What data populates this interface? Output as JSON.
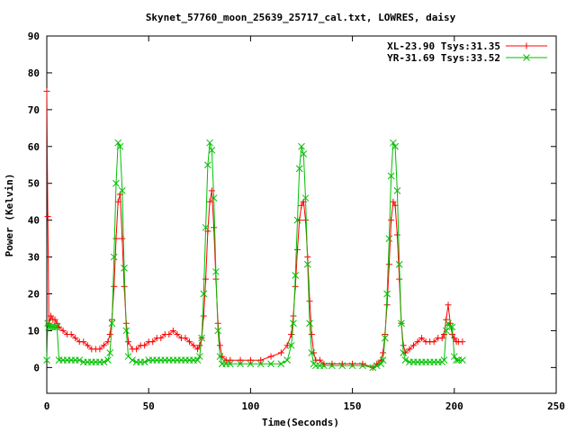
{
  "chart_data": {
    "type": "scatter",
    "title": "Skynet_57760_moon_25639_25717_cal.txt, LOWRES, daisy",
    "xlabel": "Time(Seconds)",
    "ylabel": "Power (Kelvin)",
    "xlim": [
      0,
      250
    ],
    "ylim": [
      -7,
      90
    ],
    "xticks": [
      0,
      50,
      100,
      150,
      200,
      250
    ],
    "yticks": [
      0,
      10,
      20,
      30,
      40,
      50,
      60,
      70,
      80,
      90
    ],
    "x_tick_labels": [
      "0",
      "50",
      "100",
      "150",
      "200",
      "250"
    ],
    "y_tick_labels": [
      "0",
      "10",
      "20",
      "30",
      "40",
      "50",
      "60",
      "70",
      "80",
      "90"
    ],
    "grid": false,
    "legend_position": "top-right",
    "series": [
      {
        "name": "XL-23.90 Tsys:31.35",
        "color": "#ff0000",
        "marker": "plus",
        "line": true,
        "x": [
          0,
          0.5,
          1,
          2,
          3,
          4,
          5,
          6,
          8,
          10,
          12,
          14,
          16,
          18,
          20,
          22,
          24,
          26,
          28,
          30,
          31,
          32,
          33,
          34,
          35,
          36,
          37,
          38,
          39,
          40,
          42,
          44,
          46,
          48,
          50,
          52,
          54,
          56,
          58,
          60,
          62,
          64,
          66,
          68,
          70,
          72,
          74,
          75,
          76,
          77,
          78,
          79,
          80,
          81,
          82,
          83,
          84,
          85,
          86,
          88,
          90,
          95,
          100,
          105,
          110,
          115,
          118,
          120,
          121,
          122,
          123,
          124,
          125,
          126,
          127,
          128,
          129,
          130,
          131,
          132,
          134,
          136,
          140,
          145,
          150,
          155,
          160,
          162,
          164,
          165,
          166,
          167,
          168,
          169,
          170,
          171,
          172,
          173,
          174,
          175,
          176,
          178,
          180,
          182,
          184,
          186,
          188,
          190,
          192,
          194,
          195,
          196,
          197,
          198,
          199,
          200,
          201,
          202,
          204
        ],
        "y": [
          75,
          41,
          12,
          14,
          13,
          13,
          12,
          11,
          10,
          9,
          9,
          8,
          7,
          7,
          6,
          5,
          5,
          5,
          6,
          7,
          9,
          13,
          22,
          35,
          45,
          47,
          35,
          22,
          12,
          7,
          5,
          5,
          6,
          6,
          7,
          7,
          8,
          8,
          9,
          9,
          10,
          9,
          8,
          8,
          7,
          6,
          5,
          6,
          8,
          14,
          24,
          37,
          45,
          48,
          38,
          24,
          12,
          6,
          3,
          2,
          2,
          2,
          2,
          2,
          3,
          4,
          6,
          9,
          14,
          22,
          32,
          40,
          44,
          45,
          40,
          30,
          18,
          9,
          4,
          2,
          2,
          1,
          1,
          1,
          1,
          1,
          0,
          1,
          2,
          4,
          9,
          17,
          28,
          40,
          45,
          44,
          36,
          24,
          12,
          6,
          4,
          5,
          6,
          7,
          8,
          7,
          7,
          7,
          8,
          8,
          9,
          13,
          17,
          12,
          9,
          8,
          7,
          7,
          7
        ]
      },
      {
        "name": "YR-31.69 Tsys:33.52",
        "color": "#00c000",
        "marker": "cross",
        "line": true,
        "x": [
          0,
          0.5,
          1,
          2,
          3,
          4,
          5,
          6,
          8,
          10,
          12,
          14,
          16,
          18,
          20,
          22,
          24,
          26,
          28,
          30,
          31,
          32,
          33,
          34,
          35,
          36,
          37,
          38,
          39,
          40,
          42,
          44,
          46,
          48,
          50,
          52,
          54,
          56,
          58,
          60,
          62,
          64,
          66,
          68,
          70,
          72,
          74,
          75,
          76,
          77,
          78,
          79,
          80,
          81,
          82,
          83,
          84,
          85,
          86,
          88,
          90,
          95,
          100,
          105,
          110,
          115,
          118,
          120,
          121,
          122,
          123,
          124,
          125,
          126,
          127,
          128,
          129,
          130,
          131,
          132,
          134,
          136,
          140,
          145,
          150,
          155,
          160,
          162,
          164,
          165,
          166,
          167,
          168,
          169,
          170,
          171,
          172,
          173,
          174,
          175,
          176,
          178,
          180,
          182,
          184,
          186,
          188,
          190,
          192,
          194,
          195,
          196,
          197,
          198,
          199,
          200,
          201,
          202,
          204
        ],
        "y": [
          2,
          12,
          11,
          11,
          11,
          11,
          11,
          2,
          2,
          2,
          2,
          2,
          2,
          1.5,
          1.5,
          1.5,
          1.5,
          1.5,
          1.5,
          2,
          4,
          12,
          30,
          50,
          61,
          60,
          48,
          27,
          10,
          3,
          2,
          1.5,
          1.5,
          1.5,
          2,
          2,
          2,
          2,
          2,
          2,
          2,
          2,
          2,
          2,
          2,
          2,
          2,
          3,
          8,
          20,
          38,
          55,
          61,
          59,
          46,
          26,
          10,
          3,
          1,
          1,
          1,
          1,
          1,
          1,
          1,
          1,
          2,
          6,
          12,
          25,
          40,
          54,
          60,
          58,
          46,
          28,
          12,
          4,
          1,
          0.5,
          0.5,
          0.5,
          0.5,
          0.5,
          0.5,
          0.5,
          0,
          0.5,
          1,
          2,
          8,
          20,
          35,
          52,
          61,
          60,
          48,
          28,
          12,
          4,
          2,
          1.5,
          1.5,
          1.5,
          1.5,
          1.5,
          1.5,
          1.5,
          1.5,
          1.5,
          2,
          10,
          12,
          11,
          11,
          3,
          2,
          2,
          2
        ]
      }
    ]
  }
}
